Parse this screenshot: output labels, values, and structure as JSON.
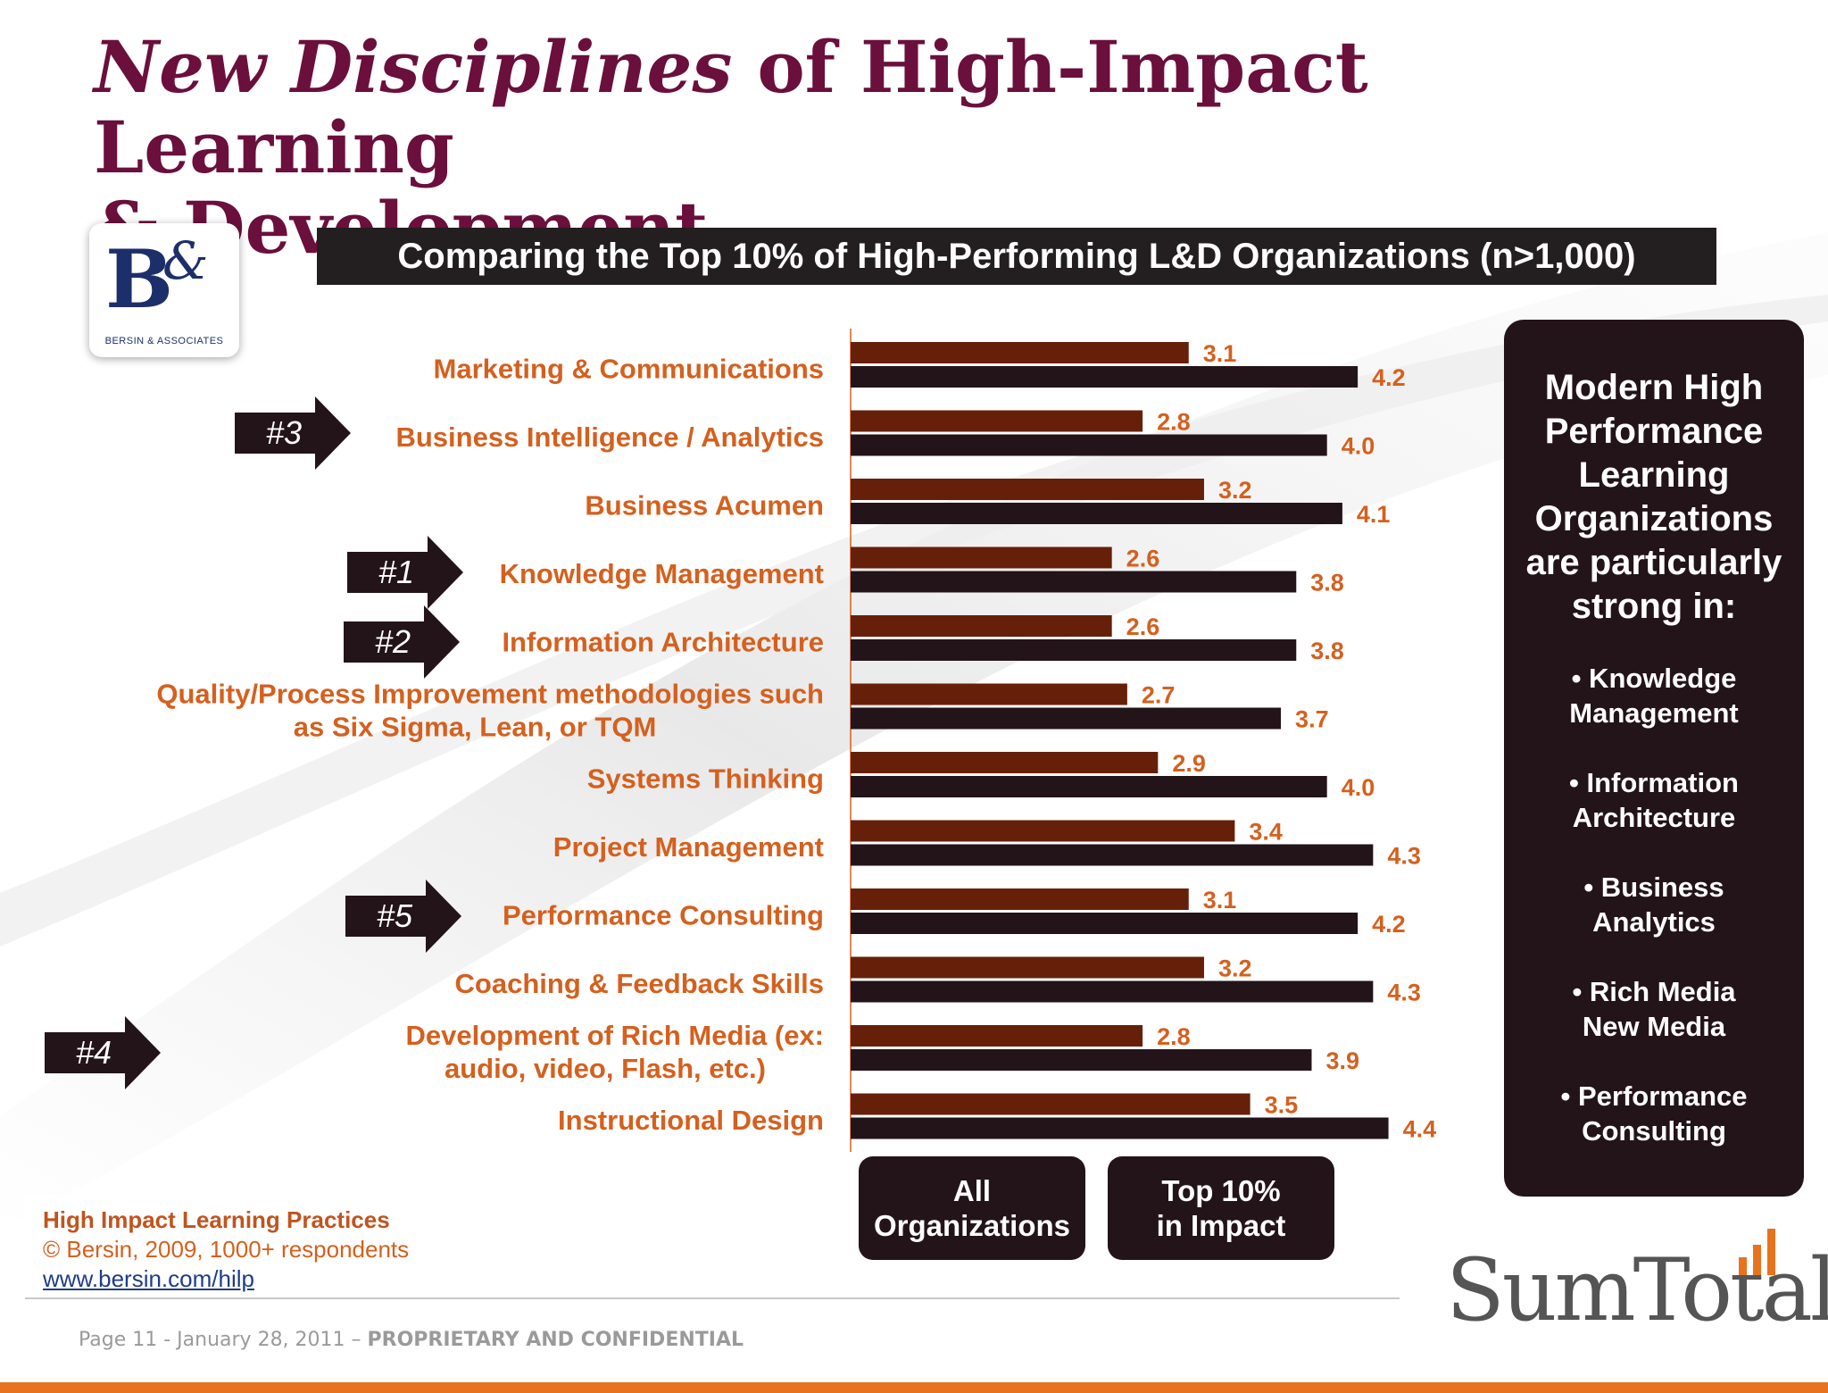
{
  "title": {
    "italic_part": "New Disciplines",
    "rest_line1": " of High-Impact Learning",
    "line2": "& Development"
  },
  "logo": {
    "letter": "B",
    "ampersand": "&",
    "caption": "BERSIN & ASSOCIATES"
  },
  "colors": {
    "title": "#6b0f3c",
    "all_orgs_bar": "#66200a",
    "top10_bar": "#231419",
    "label_orange": "#d5601e",
    "value_orange": "#d5601e",
    "banner_bg": "#231f20"
  },
  "chart_data": {
    "type": "bar",
    "orientation": "horizontal",
    "title": "Comparing the Top 10% of High-Performing L&D Organizations (n>1,000)",
    "categories": [
      "Marketing & Communications",
      "Business Intelligence / Analytics",
      "Business Acumen",
      "Knowledge Management",
      "Information Architecture",
      "Quality/Process Improvement methodologies such as Six Sigma, Lean, or TQM",
      "Systems Thinking",
      "Project Management",
      "Performance Consulting",
      "Coaching & Feedback Skills",
      "Development of Rich Media (ex: audio, video, Flash, etc.)",
      "Instructional Design"
    ],
    "series": [
      {
        "name": "All Organizations",
        "values": [
          3.1,
          2.8,
          3.2,
          2.6,
          2.6,
          2.7,
          2.9,
          3.4,
          3.1,
          3.2,
          2.8,
          3.5
        ]
      },
      {
        "name": "Top 10% in Impact",
        "values": [
          4.2,
          4.0,
          4.1,
          3.8,
          3.8,
          3.7,
          4.0,
          4.3,
          4.2,
          4.3,
          3.9,
          4.4
        ]
      }
    ],
    "value_labels": [
      [
        "3.1",
        "2.8",
        "3.2",
        "2.6",
        "2.6",
        "2.7",
        "2.9",
        "3.4",
        "3.1",
        "3.2",
        "2.8",
        "3.5"
      ],
      [
        "4.2",
        "4.0",
        "4.1",
        "3.8",
        "3.8",
        "3.7",
        "4.0",
        "4.3",
        "4.2",
        "4.3",
        "3.9",
        "4.4"
      ]
    ],
    "xlim": [
      0.9,
      4.6
    ],
    "grid": false,
    "legend": "bottom"
  },
  "label_lines": [
    [
      "Marketing & Communications"
    ],
    [
      "Business Intelligence / Analytics"
    ],
    [
      "Business Acumen"
    ],
    [
      "Knowledge Management"
    ],
    [
      "Information Architecture"
    ],
    [
      "Quality/Process Improvement methodologies such",
      "as Six Sigma, Lean, or TQM"
    ],
    [
      "Systems Thinking"
    ],
    [
      "Project Management"
    ],
    [
      "Performance Consulting"
    ],
    [
      "Coaching & Feedback Skills"
    ],
    [
      "Development of Rich Media (ex:",
      "audio, video, Flash, etc.)"
    ],
    [
      "Instructional Design"
    ]
  ],
  "ranks": {
    "r1": "#1",
    "r2": "#2",
    "r3": "#3",
    "r4": "#4",
    "r5": "#5"
  },
  "legend": {
    "all_line1": "All",
    "all_line2": "Organizations",
    "top_line1": "Top 10%",
    "top_line2": "in Impact"
  },
  "side_panel": {
    "heading_lines": [
      "Modern High",
      "Performance",
      "Learning",
      "Organizations",
      "are particularly",
      "strong in:"
    ],
    "items": [
      [
        "• Knowledge",
        "Management"
      ],
      [
        "•  Information",
        "Architecture"
      ],
      [
        "•  Business",
        "Analytics"
      ],
      [
        "•  Rich Media",
        "New Media"
      ],
      [
        "•  Performance",
        "Consulting"
      ]
    ]
  },
  "source": {
    "title": "High Impact Learning Practices",
    "line": "© Bersin, 2009, 1000+ respondents",
    "link": "www.bersin.com/hilp"
  },
  "footer": {
    "text": "Page 11 - January 28, 2011 – ",
    "bold": "PROPRIETARY AND CONFIDENTIAL"
  },
  "brand": {
    "name": "SumTotal."
  }
}
